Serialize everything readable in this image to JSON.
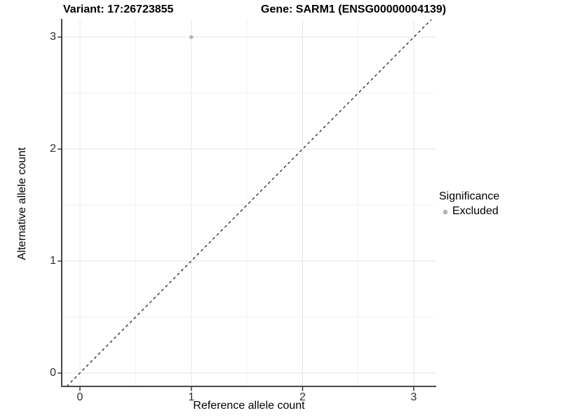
{
  "header": {
    "title_variant": "Variant: 17:26723855",
    "title_gene": "Gene: SARM1 (ENSG00000004139)"
  },
  "chart_data": {
    "type": "scatter",
    "titles": [
      "Variant: 17:26723855",
      "Gene: SARM1 (ENSG00000004139)"
    ],
    "xlabel": "Reference allele count",
    "ylabel": "Alternative allele count",
    "x_ticks": [
      "0",
      "1",
      "2",
      "3"
    ],
    "y_ticks": [
      "0",
      "1",
      "2",
      "3"
    ],
    "xlim": [
      -0.17,
      3.2
    ],
    "ylim": [
      -0.12,
      3.16
    ],
    "grid": "major and minor light-grey gridlines on white panel",
    "reference_line": "dashed black diagonal y = x",
    "series": [
      {
        "name": "Excluded",
        "color": "#b5b5b5",
        "points": [
          {
            "x": 1,
            "y": 3
          }
        ]
      }
    ],
    "legend": {
      "title": "Significance",
      "position": "right",
      "entries": [
        {
          "label": "Excluded",
          "color": "#b5b5b5"
        }
      ]
    }
  }
}
